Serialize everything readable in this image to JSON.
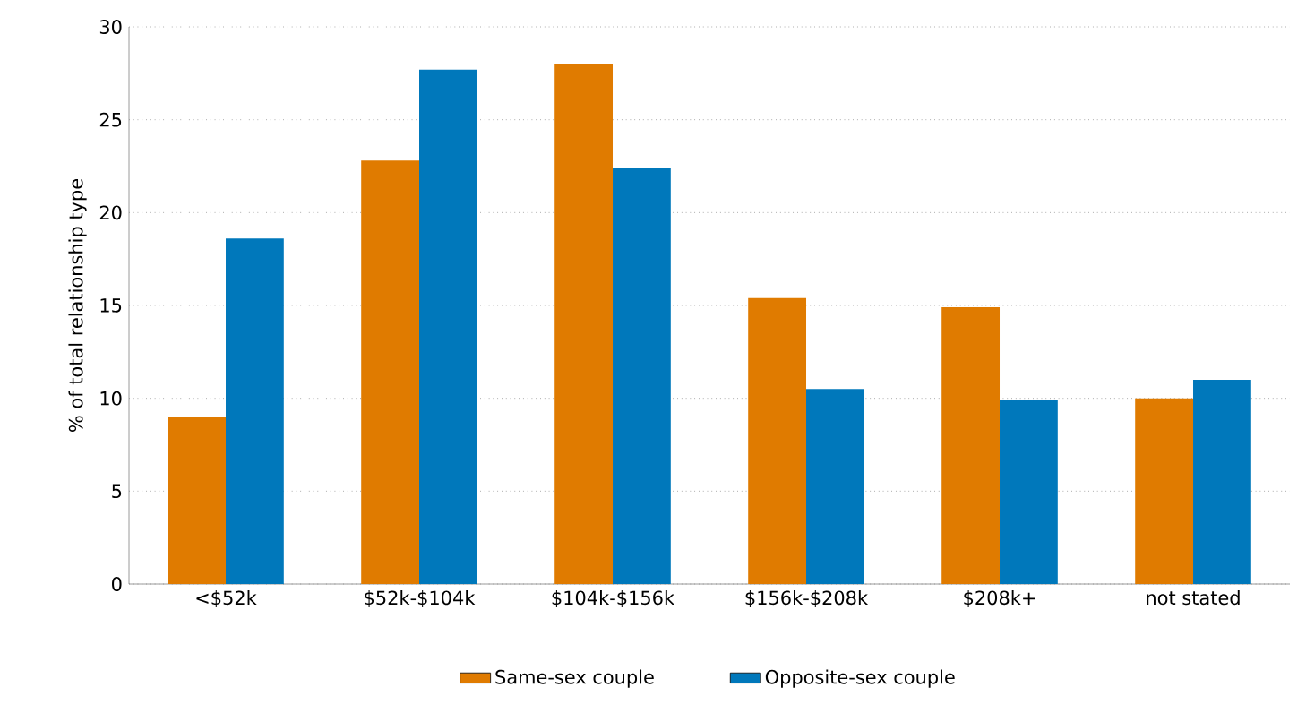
{
  "chart_data": {
    "type": "bar",
    "ylabel": "% of total relationship type",
    "categories": [
      "<$52k",
      "$52k-$104k",
      "$104k-$156k",
      "$156k-$208k",
      "$208k+",
      "not stated"
    ],
    "series": [
      {
        "name": "Same-sex couple",
        "color": "#e07b00",
        "values": [
          9.0,
          22.8,
          28.0,
          15.4,
          14.9,
          10.0
        ]
      },
      {
        "name": "Opposite-sex couple",
        "color": "#0078bb",
        "values": [
          18.6,
          27.7,
          22.4,
          10.5,
          9.9,
          11.0
        ]
      }
    ],
    "ylim": [
      0,
      30
    ],
    "yticks": [
      0,
      5,
      10,
      15,
      20,
      25,
      30
    ],
    "grid": "y",
    "legend": "bottom"
  }
}
